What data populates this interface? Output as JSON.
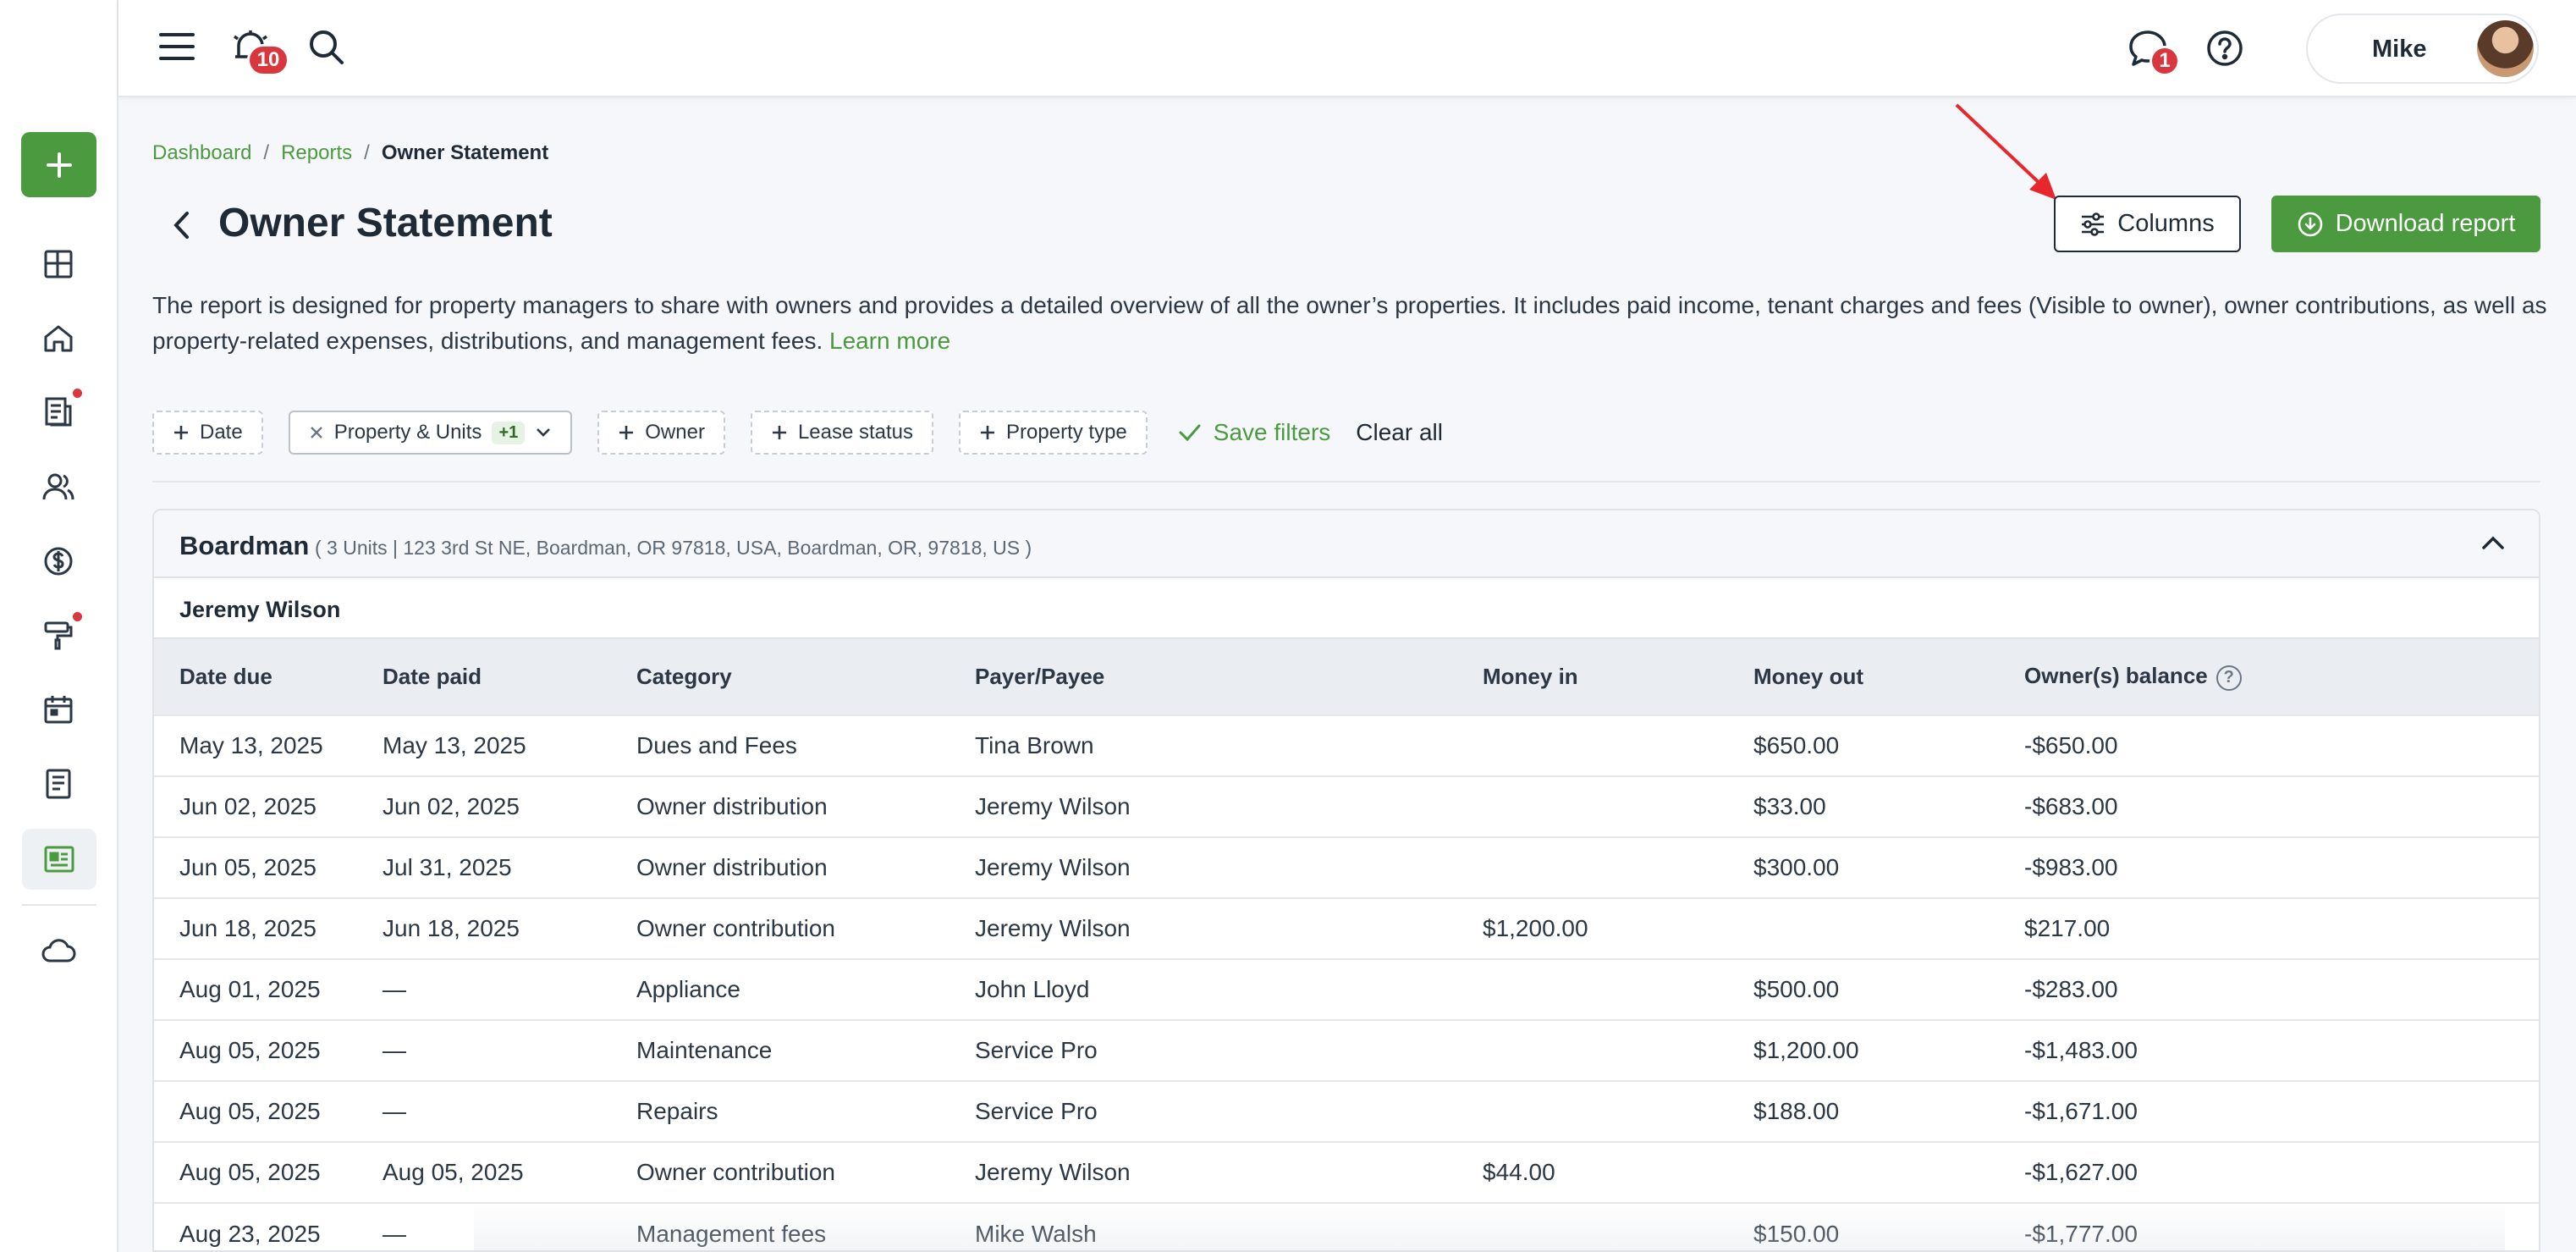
{
  "topbar": {
    "notifications_count": "10",
    "messages_count": "1",
    "user_name": "Mike"
  },
  "breadcrumb": {
    "items": [
      "Dashboard",
      "Reports"
    ],
    "separator": "/",
    "current": "Owner Statement"
  },
  "page": {
    "title": "Owner Statement",
    "columns_label": "Columns",
    "download_label": "Download report",
    "description": "The report is designed for property managers to share with owners and provides a detailed overview of all the owner’s properties. It includes paid income, tenant charges and fees (Visible to owner), owner contributions, as well as property-related expenses, distributions, and management fees.",
    "learn_more": "Learn more"
  },
  "filters": {
    "date": "Date",
    "property_units": "Property & Units",
    "property_units_count": "+1",
    "owner": "Owner",
    "lease_status": "Lease status",
    "property_type": "Property type",
    "save_filters": "Save filters",
    "clear_all": "Clear all"
  },
  "report": {
    "property_name": "Boardman",
    "property_details": "( 3 Units | 123 3rd St NE, Boardman, OR 97818, USA, Boardman, OR, 97818, US )",
    "owner_name": "Jeremy Wilson",
    "columns": [
      "Date due",
      "Date paid",
      "Category",
      "Payer/Payee",
      "Money in",
      "Money out",
      "Owner(s) balance"
    ],
    "rows": [
      [
        "May 13, 2025",
        "May 13, 2025",
        "Dues and Fees",
        "Tina Brown",
        "",
        "$650.00",
        "-$650.00"
      ],
      [
        "Jun 02, 2025",
        "Jun 02, 2025",
        "Owner distribution",
        "Jeremy Wilson",
        "",
        "$33.00",
        "-$683.00"
      ],
      [
        "Jun 05, 2025",
        "Jul 31, 2025",
        "Owner distribution",
        "Jeremy Wilson",
        "",
        "$300.00",
        "-$983.00"
      ],
      [
        "Jun 18, 2025",
        "Jun 18, 2025",
        "Owner contribution",
        "Jeremy Wilson",
        "$1,200.00",
        "",
        "$217.00"
      ],
      [
        "Aug 01, 2025",
        "—",
        "Appliance",
        "John Lloyd",
        "",
        "$500.00",
        "-$283.00"
      ],
      [
        "Aug 05, 2025",
        "—",
        "Maintenance",
        "Service Pro",
        "",
        "$1,200.00",
        "-$1,483.00"
      ],
      [
        "Aug 05, 2025",
        "—",
        "Repairs",
        "Service Pro",
        "",
        "$188.00",
        "-$1,671.00"
      ],
      [
        "Aug 05, 2025",
        "Aug 05, 2025",
        "Owner contribution",
        "Jeremy Wilson",
        "$44.00",
        "",
        "-$1,627.00"
      ],
      [
        "Aug 23, 2025",
        "—",
        "Management fees",
        "Mike Walsh",
        "",
        "$150.00",
        "-$1,777.00"
      ]
    ]
  },
  "colors": {
    "accent": "#4c9a3f",
    "badge": "#d9363e",
    "text": "#1f2a37"
  },
  "icons": {
    "sidebar": [
      "add-icon",
      "dashboard-icon",
      "home-icon",
      "leases-icon",
      "people-icon",
      "dollar-icon",
      "maintenance-icon",
      "calendar-icon",
      "document-icon",
      "reports-icon",
      "cloud-icon"
    ]
  }
}
